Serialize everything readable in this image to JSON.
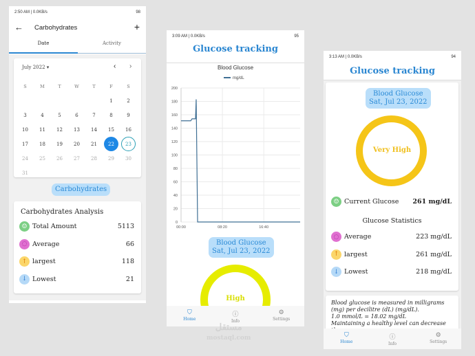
{
  "watermark": "مستقل mostaql.com",
  "colors": {
    "accent": "#2a86d1",
    "high": "#e6ec00",
    "very_high": "#f5c518",
    "selected_day": "#1e88e5"
  },
  "screen1": {
    "status": {
      "time": "2:50 AM | 0.0KB/s",
      "battery": "98"
    },
    "header": {
      "title": "Carbohydrates",
      "back_icon": "arrow-left-icon",
      "add_icon": "plus-icon"
    },
    "tabs": [
      {
        "label": "Date",
        "active": true
      },
      {
        "label": "Activity",
        "active": false
      }
    ],
    "calendar": {
      "month": "July 2022",
      "weekdays": [
        "S",
        "M",
        "T",
        "W",
        "T",
        "F",
        "S"
      ],
      "days": [
        "",
        "",
        "",
        "",
        "",
        "1",
        "2",
        "3",
        "4",
        "5",
        "6",
        "7",
        "8",
        "9",
        "10",
        "11",
        "12",
        "13",
        "14",
        "15",
        "16",
        "17",
        "18",
        "19",
        "20",
        "21",
        "22",
        "23",
        "24",
        "25",
        "26",
        "27",
        "28",
        "29",
        "30",
        "31"
      ],
      "selected": "22",
      "today": "23"
    },
    "section_pill": "Carbohydrates",
    "analysis": {
      "title": "Carbohydrates Analysis",
      "rows": [
        {
          "label": "Total Amount",
          "value": "5113",
          "icon": "scale-icon"
        },
        {
          "label": "Average",
          "value": "66",
          "icon": "average-icon"
        },
        {
          "label": "largest",
          "value": "118",
          "icon": "arrow-up-icon"
        },
        {
          "label": "Lowest",
          "value": "21",
          "icon": "arrow-down-icon"
        }
      ]
    }
  },
  "screen2": {
    "status": {
      "time": "3:09 AM | 0.0KB/s",
      "battery": "95"
    },
    "title": "Glucose tracking",
    "chart_data": {
      "type": "line",
      "title": "Blood Glucose",
      "series": [
        {
          "name": "mg/dL",
          "x": [
            "00:00",
            "01:57",
            "02:13",
            "02:55",
            "03:03",
            "03:20",
            "24:00"
          ],
          "values": [
            151,
            151,
            154,
            154,
            183,
            0,
            0
          ]
        }
      ],
      "xticks": [
        "00:00",
        "08:20",
        "16:40"
      ],
      "yticks": [
        0,
        20,
        40,
        60,
        80,
        100,
        120,
        140,
        160,
        180,
        200
      ],
      "ylim": [
        0,
        200
      ],
      "xlim": [
        "00:00",
        "24:00"
      ],
      "grid": true,
      "legend": "top"
    },
    "pill": {
      "line1": "Blood Glucose",
      "line2": "Sat, Jul 23, 2022"
    },
    "gauge_label": "High",
    "nav": [
      {
        "label": "Home",
        "icon": "shield-icon"
      },
      {
        "label": "Info",
        "icon": "info-icon"
      },
      {
        "label": "Settings",
        "icon": "gear-icon"
      }
    ]
  },
  "screen3": {
    "status": {
      "time": "3:13 AM | 0.0KB/s",
      "battery": "94"
    },
    "title": "Glucose tracking",
    "pill": {
      "line1": "Blood Glucose",
      "line2": "Sat, Jul 23, 2022"
    },
    "gauge_label": "Very High",
    "current": {
      "label": "Current Glucose",
      "value": "261 mg/dL"
    },
    "stats_title": "Glucose Statistics",
    "stats": [
      {
        "label": "Average",
        "value": "223 mg/dL"
      },
      {
        "label": "largest",
        "value": "261 mg/dL"
      },
      {
        "label": "Lowest",
        "value": "218 mg/dL"
      }
    ],
    "info": [
      "Blood glucose is measured in  milligrams (mg) per decilitre (dL) (mg/dL).",
      "1.0 mmol/L = 18.02 mg/dL",
      "Maintaining a healthy level can decrease the"
    ],
    "nav": [
      {
        "label": "Home",
        "icon": "shield-icon"
      },
      {
        "label": "Info",
        "icon": "info-icon"
      },
      {
        "label": "Settings",
        "icon": "gear-icon"
      }
    ]
  }
}
